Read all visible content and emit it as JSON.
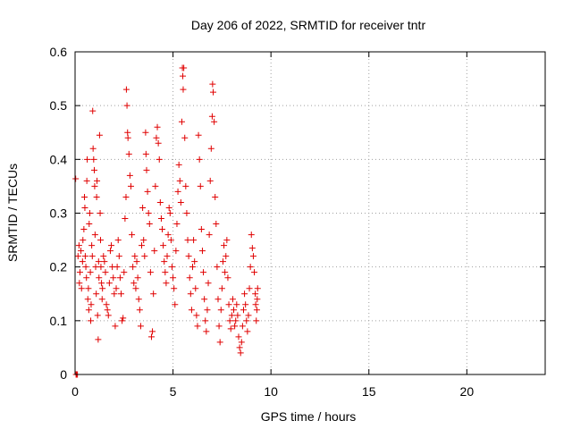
{
  "chart_data": {
    "type": "scatter",
    "title": "Day 206 of 2022, SRMTID for receiver tntr",
    "xlabel": "GPS time / hours",
    "ylabel": "SRMTID / TECUs",
    "xlim": [
      0,
      24
    ],
    "ylim": [
      0,
      0.6
    ],
    "xticks": [
      0,
      5,
      10,
      15,
      20
    ],
    "yticks": [
      0,
      0.1,
      0.2,
      0.3,
      0.4,
      0.5,
      0.6
    ],
    "grid": true,
    "marker": "plus",
    "color": "#e00000",
    "series": [
      {
        "name": "SRMTID",
        "points": [
          [
            0.03,
            0.364
          ],
          [
            0.05,
            0.0
          ],
          [
            0.08,
            0.0
          ],
          [
            0.12,
            0.0
          ],
          [
            0.15,
            0.22
          ],
          [
            0.2,
            0.24
          ],
          [
            0.22,
            0.17
          ],
          [
            0.25,
            0.19
          ],
          [
            0.3,
            0.23
          ],
          [
            0.33,
            0.16
          ],
          [
            0.38,
            0.21
          ],
          [
            0.4,
            0.25
          ],
          [
            0.45,
            0.27
          ],
          [
            0.48,
            0.33
          ],
          [
            0.5,
            0.31
          ],
          [
            0.52,
            0.22
          ],
          [
            0.55,
            0.2
          ],
          [
            0.58,
            0.18
          ],
          [
            0.6,
            0.36
          ],
          [
            0.62,
            0.4
          ],
          [
            0.65,
            0.14
          ],
          [
            0.68,
            0.16
          ],
          [
            0.7,
            0.12
          ],
          [
            0.72,
            0.28
          ],
          [
            0.75,
            0.3
          ],
          [
            0.78,
            0.19
          ],
          [
            0.8,
            0.1
          ],
          [
            0.82,
            0.13
          ],
          [
            0.85,
            0.24
          ],
          [
            0.88,
            0.22
          ],
          [
            0.9,
            0.49
          ],
          [
            0.92,
            0.42
          ],
          [
            0.95,
            0.4
          ],
          [
            0.98,
            0.38
          ],
          [
            1.0,
            0.35
          ],
          [
            1.02,
            0.26
          ],
          [
            1.05,
            0.2
          ],
          [
            1.08,
            0.15
          ],
          [
            1.1,
            0.33
          ],
          [
            1.12,
            0.36
          ],
          [
            1.15,
            0.11
          ],
          [
            1.18,
            0.065
          ],
          [
            1.2,
            0.21
          ],
          [
            1.22,
            0.18
          ],
          [
            1.25,
            0.445
          ],
          [
            1.28,
            0.3
          ],
          [
            1.3,
            0.25
          ],
          [
            1.32,
            0.2
          ],
          [
            1.35,
            0.17
          ],
          [
            1.38,
            0.14
          ],
          [
            1.4,
            0.16
          ],
          [
            1.45,
            0.22
          ],
          [
            1.5,
            0.21
          ],
          [
            1.55,
            0.19
          ],
          [
            1.6,
            0.13
          ],
          [
            1.65,
            0.12
          ],
          [
            1.7,
            0.11
          ],
          [
            1.75,
            0.17
          ],
          [
            1.8,
            0.23
          ],
          [
            1.85,
            0.24
          ],
          [
            1.9,
            0.2
          ],
          [
            1.95,
            0.18
          ],
          [
            2.0,
            0.15
          ],
          [
            2.05,
            0.09
          ],
          [
            2.1,
            0.16
          ],
          [
            2.15,
            0.2
          ],
          [
            2.2,
            0.25
          ],
          [
            2.25,
            0.22
          ],
          [
            2.3,
            0.18
          ],
          [
            2.35,
            0.15
          ],
          [
            2.4,
            0.1
          ],
          [
            2.45,
            0.105
          ],
          [
            2.5,
            0.19
          ],
          [
            2.55,
            0.29
          ],
          [
            2.6,
            0.33
          ],
          [
            2.62,
            0.53
          ],
          [
            2.65,
            0.5
          ],
          [
            2.68,
            0.45
          ],
          [
            2.7,
            0.44
          ],
          [
            2.75,
            0.41
          ],
          [
            2.8,
            0.37
          ],
          [
            2.85,
            0.35
          ],
          [
            2.9,
            0.26
          ],
          [
            2.95,
            0.2
          ],
          [
            3.0,
            0.17
          ],
          [
            3.05,
            0.22
          ],
          [
            3.1,
            0.16
          ],
          [
            3.15,
            0.21
          ],
          [
            3.2,
            0.18
          ],
          [
            3.25,
            0.14
          ],
          [
            3.3,
            0.12
          ],
          [
            3.35,
            0.09
          ],
          [
            3.4,
            0.24
          ],
          [
            3.45,
            0.31
          ],
          [
            3.5,
            0.25
          ],
          [
            3.55,
            0.22
          ],
          [
            3.6,
            0.45
          ],
          [
            3.62,
            0.41
          ],
          [
            3.65,
            0.38
          ],
          [
            3.7,
            0.34
          ],
          [
            3.75,
            0.3
          ],
          [
            3.8,
            0.28
          ],
          [
            3.85,
            0.19
          ],
          [
            3.9,
            0.07
          ],
          [
            3.95,
            0.08
          ],
          [
            4.0,
            0.15
          ],
          [
            4.05,
            0.23
          ],
          [
            4.1,
            0.35
          ],
          [
            4.15,
            0.44
          ],
          [
            4.2,
            0.46
          ],
          [
            4.25,
            0.43
          ],
          [
            4.3,
            0.4
          ],
          [
            4.35,
            0.32
          ],
          [
            4.4,
            0.29
          ],
          [
            4.45,
            0.27
          ],
          [
            4.5,
            0.24
          ],
          [
            4.55,
            0.21
          ],
          [
            4.6,
            0.19
          ],
          [
            4.65,
            0.17
          ],
          [
            4.7,
            0.22
          ],
          [
            4.75,
            0.26
          ],
          [
            4.8,
            0.31
          ],
          [
            4.85,
            0.3
          ],
          [
            4.9,
            0.25
          ],
          [
            4.95,
            0.2
          ],
          [
            5.0,
            0.18
          ],
          [
            5.05,
            0.16
          ],
          [
            5.1,
            0.13
          ],
          [
            5.15,
            0.23
          ],
          [
            5.2,
            0.28
          ],
          [
            5.25,
            0.34
          ],
          [
            5.3,
            0.39
          ],
          [
            5.35,
            0.36
          ],
          [
            5.4,
            0.32
          ],
          [
            5.45,
            0.47
          ],
          [
            5.48,
            0.57
          ],
          [
            5.5,
            0.555
          ],
          [
            5.52,
            0.53
          ],
          [
            5.55,
            0.57
          ],
          [
            5.6,
            0.44
          ],
          [
            5.65,
            0.35
          ],
          [
            5.7,
            0.3
          ],
          [
            5.75,
            0.25
          ],
          [
            5.8,
            0.22
          ],
          [
            5.85,
            0.18
          ],
          [
            5.9,
            0.15
          ],
          [
            5.95,
            0.12
          ],
          [
            6.0,
            0.2
          ],
          [
            6.05,
            0.25
          ],
          [
            6.1,
            0.21
          ],
          [
            6.15,
            0.16
          ],
          [
            6.2,
            0.11
          ],
          [
            6.25,
            0.09
          ],
          [
            6.3,
            0.445
          ],
          [
            6.35,
            0.4
          ],
          [
            6.4,
            0.35
          ],
          [
            6.45,
            0.27
          ],
          [
            6.5,
            0.23
          ],
          [
            6.55,
            0.19
          ],
          [
            6.6,
            0.14
          ],
          [
            6.65,
            0.1
          ],
          [
            6.7,
            0.08
          ],
          [
            6.75,
            0.12
          ],
          [
            6.8,
            0.17
          ],
          [
            6.85,
            0.26
          ],
          [
            6.9,
            0.36
          ],
          [
            6.95,
            0.42
          ],
          [
            7.0,
            0.48
          ],
          [
            7.02,
            0.54
          ],
          [
            7.05,
            0.525
          ],
          [
            7.1,
            0.47
          ],
          [
            7.15,
            0.33
          ],
          [
            7.2,
            0.28
          ],
          [
            7.25,
            0.2
          ],
          [
            7.3,
            0.14
          ],
          [
            7.35,
            0.09
          ],
          [
            7.4,
            0.06
          ],
          [
            7.45,
            0.12
          ],
          [
            7.5,
            0.16
          ],
          [
            7.55,
            0.21
          ],
          [
            7.6,
            0.24
          ],
          [
            7.65,
            0.19
          ],
          [
            7.7,
            0.22
          ],
          [
            7.75,
            0.25
          ],
          [
            7.8,
            0.18
          ],
          [
            7.85,
            0.13
          ],
          [
            7.9,
            0.1
          ],
          [
            7.95,
            0.085
          ],
          [
            8.0,
            0.11
          ],
          [
            8.05,
            0.14
          ],
          [
            8.1,
            0.12
          ],
          [
            8.15,
            0.09
          ],
          [
            8.2,
            0.1
          ],
          [
            8.25,
            0.13
          ],
          [
            8.3,
            0.11
          ],
          [
            8.35,
            0.07
          ],
          [
            8.4,
            0.05
          ],
          [
            8.45,
            0.04
          ],
          [
            8.5,
            0.06
          ],
          [
            8.55,
            0.09
          ],
          [
            8.6,
            0.12
          ],
          [
            8.65,
            0.15
          ],
          [
            8.7,
            0.13
          ],
          [
            8.75,
            0.1
          ],
          [
            8.8,
            0.08
          ],
          [
            8.85,
            0.11
          ],
          [
            8.9,
            0.16
          ],
          [
            8.95,
            0.2
          ],
          [
            9.0,
            0.26
          ],
          [
            9.05,
            0.235
          ],
          [
            9.1,
            0.22
          ],
          [
            9.15,
            0.19
          ],
          [
            9.2,
            0.15
          ],
          [
            9.22,
            0.13
          ],
          [
            9.25,
            0.1
          ],
          [
            9.28,
            0.12
          ],
          [
            9.3,
            0.14
          ],
          [
            9.32,
            0.16
          ]
        ]
      }
    ]
  }
}
